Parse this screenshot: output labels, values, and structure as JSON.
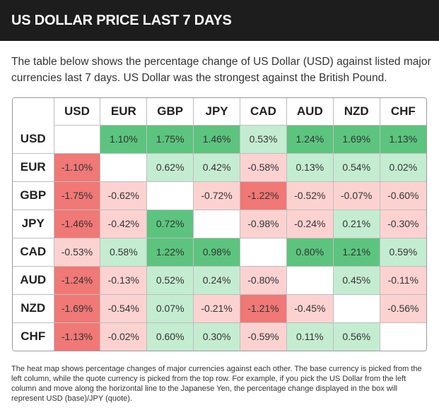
{
  "header": {
    "title": "US DOLLAR PRICE LAST 7 DAYS"
  },
  "intro": {
    "text": "The table below shows the percentage change of US Dollar (USD) against listed major currencies last 7 days. US Dollar was the strongest against the British Pound."
  },
  "heatmap": {
    "columns": [
      "USD",
      "EUR",
      "GBP",
      "JPY",
      "CAD",
      "AUD",
      "NZD",
      "CHF"
    ],
    "rows": [
      {
        "base": "USD",
        "values": [
          "",
          "1.10%",
          "1.75%",
          "1.46%",
          "0.53%",
          "1.24%",
          "1.69%",
          "1.13%"
        ],
        "changes": [
          null,
          1.1,
          1.75,
          1.46,
          0.53,
          1.24,
          1.69,
          1.13
        ]
      },
      {
        "base": "EUR",
        "values": [
          "-1.10%",
          "",
          "0.62%",
          "0.42%",
          "-0.58%",
          "0.13%",
          "0.54%",
          "0.02%"
        ],
        "changes": [
          -1.1,
          null,
          0.62,
          0.42,
          -0.58,
          0.13,
          0.54,
          0.02
        ]
      },
      {
        "base": "GBP",
        "values": [
          "-1.75%",
          "-0.62%",
          "",
          "-0.72%",
          "-1.22%",
          "-0.52%",
          "-0.07%",
          "-0.60%"
        ],
        "changes": [
          -1.75,
          -0.62,
          null,
          -0.72,
          -1.22,
          -0.52,
          -0.07,
          -0.6
        ]
      },
      {
        "base": "JPY",
        "values": [
          "-1.46%",
          "-0.42%",
          "0.72%",
          "",
          "-0.98%",
          "-0.24%",
          "0.21%",
          "-0.30%"
        ],
        "changes": [
          -1.46,
          -0.42,
          0.72,
          null,
          -0.98,
          -0.24,
          0.21,
          -0.3
        ]
      },
      {
        "base": "CAD",
        "values": [
          "-0.53%",
          "0.58%",
          "1.22%",
          "0.98%",
          "",
          "0.80%",
          "1.21%",
          "0.59%"
        ],
        "changes": [
          -0.53,
          0.58,
          1.22,
          0.98,
          null,
          0.8,
          1.21,
          0.59
        ]
      },
      {
        "base": "AUD",
        "values": [
          "-1.24%",
          "-0.13%",
          "0.52%",
          "0.24%",
          "-0.80%",
          "",
          "0.45%",
          "-0.11%"
        ],
        "changes": [
          -1.24,
          -0.13,
          0.52,
          0.24,
          -0.8,
          null,
          0.45,
          -0.11
        ]
      },
      {
        "base": "NZD",
        "values": [
          "-1.69%",
          "-0.54%",
          "0.07%",
          "-0.21%",
          "-1.21%",
          "-0.45%",
          "",
          "-0.56%"
        ],
        "changes": [
          -1.69,
          -0.54,
          0.07,
          -0.21,
          -1.21,
          -0.45,
          null,
          -0.56
        ]
      },
      {
        "base": "CHF",
        "values": [
          "-1.13%",
          "-0.02%",
          "0.60%",
          "0.30%",
          "-0.59%",
          "0.11%",
          "0.56%",
          ""
        ],
        "changes": [
          -1.13,
          -0.02,
          0.6,
          0.3,
          -0.59,
          0.11,
          0.56,
          null
        ]
      }
    ],
    "colors": {
      "strong_positive": "#5cc47e",
      "light_positive": "#c4ecd1",
      "strong_negative": "#f07876",
      "light_negative": "#fcd2d1",
      "empty": "#ffffff"
    }
  },
  "footnote": {
    "text": "The heat map shows percentage changes of major currencies against each other. The base currency is picked from the left column, while the quote currency is picked from the top row. For example, if you pick the US Dollar from the left column and move along the horizontal line to the Japanese Yen, the percentage change displayed in the box will represent USD (base)/JPY (quote)."
  }
}
